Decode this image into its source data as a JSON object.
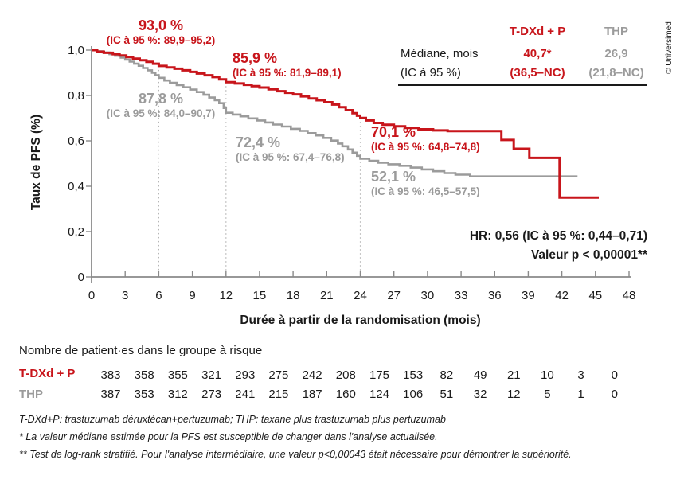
{
  "colors": {
    "tdxd_red": "#c8151b",
    "thp_gray": "#9b9b9b",
    "text": "#1a1a1a",
    "axis": "#8a8a8a",
    "dotted_line": "#b5b5b5"
  },
  "copyright": "© Universimed",
  "chart_data": {
    "type": "line",
    "subtype": "kaplan-meier-step",
    "xlabel": "Durée à partir de la randomisation (mois)",
    "ylabel": "Taux de PFS (%)",
    "xlim": [
      0,
      48
    ],
    "ylim": [
      0,
      1
    ],
    "grid": false,
    "x_ticks": [
      0,
      3,
      6,
      9,
      12,
      15,
      18,
      21,
      24,
      27,
      30,
      33,
      36,
      39,
      42,
      45,
      48
    ],
    "x_tick_labels": [
      "0",
      "3",
      "6",
      "9",
      "12",
      "15",
      "18",
      "21",
      "24",
      "27",
      "30",
      "33",
      "36",
      "39",
      "42",
      "45",
      "48"
    ],
    "y_ticks": [
      0,
      0.2,
      0.4,
      0.6,
      0.8,
      1
    ],
    "y_tick_labels": [
      "0",
      "0,2",
      "0,4",
      "0,6",
      "0,8",
      "1,0"
    ],
    "series": [
      {
        "name": "THP",
        "color_key": "thp_gray",
        "stroke_width": 2.6,
        "points": [
          [
            0,
            1
          ],
          [
            0.5,
            0.995
          ],
          [
            1,
            0.989
          ],
          [
            1.6,
            0.982
          ],
          [
            2.1,
            0.975
          ],
          [
            2.6,
            0.967
          ],
          [
            3,
            0.958
          ],
          [
            3.4,
            0.949
          ],
          [
            3.8,
            0.94
          ],
          [
            4.2,
            0.931
          ],
          [
            4.6,
            0.921
          ],
          [
            5,
            0.911
          ],
          [
            5.4,
            0.9
          ],
          [
            5.7,
            0.889
          ],
          [
            6,
            0.878
          ],
          [
            6.5,
            0.866
          ],
          [
            7,
            0.856
          ],
          [
            7.6,
            0.846
          ],
          [
            8.2,
            0.836
          ],
          [
            8.8,
            0.826
          ],
          [
            9.4,
            0.815
          ],
          [
            10,
            0.803
          ],
          [
            10.5,
            0.791
          ],
          [
            11,
            0.779
          ],
          [
            11.4,
            0.766
          ],
          [
            11.8,
            0.745
          ],
          [
            12,
            0.724
          ],
          [
            12.6,
            0.716
          ],
          [
            13.3,
            0.708
          ],
          [
            14,
            0.699
          ],
          [
            14.8,
            0.69
          ],
          [
            15.5,
            0.681
          ],
          [
            16.2,
            0.672
          ],
          [
            17,
            0.663
          ],
          [
            17.8,
            0.653
          ],
          [
            18.6,
            0.644
          ],
          [
            19.3,
            0.634
          ],
          [
            20,
            0.624
          ],
          [
            20.7,
            0.613
          ],
          [
            21.4,
            0.601
          ],
          [
            22,
            0.588
          ],
          [
            22.4,
            0.576
          ],
          [
            22.9,
            0.562
          ],
          [
            23.3,
            0.548
          ],
          [
            23.7,
            0.534
          ],
          [
            24,
            0.521
          ],
          [
            24.8,
            0.512
          ],
          [
            25.6,
            0.504
          ],
          [
            26.5,
            0.497
          ],
          [
            27.5,
            0.49
          ],
          [
            28.5,
            0.482
          ],
          [
            29.5,
            0.474
          ],
          [
            30.5,
            0.466
          ],
          [
            31.5,
            0.458
          ],
          [
            32.5,
            0.451
          ],
          [
            33.8,
            0.443
          ],
          [
            43.4,
            0.443
          ]
        ]
      },
      {
        "name": "T-DXd + P",
        "color_key": "tdxd_red",
        "stroke_width": 3,
        "points": [
          [
            0,
            1
          ],
          [
            0.5,
            0.993
          ],
          [
            1.1,
            0.988
          ],
          [
            1.9,
            0.982
          ],
          [
            2.5,
            0.976
          ],
          [
            3.1,
            0.969
          ],
          [
            3.7,
            0.962
          ],
          [
            4.3,
            0.955
          ],
          [
            4.9,
            0.948
          ],
          [
            5.5,
            0.94
          ],
          [
            6,
            0.93
          ],
          [
            6.7,
            0.924
          ],
          [
            7.4,
            0.918
          ],
          [
            8.1,
            0.911
          ],
          [
            8.8,
            0.904
          ],
          [
            9.4,
            0.897
          ],
          [
            10.1,
            0.889
          ],
          [
            10.8,
            0.881
          ],
          [
            11.4,
            0.871
          ],
          [
            12,
            0.859
          ],
          [
            12.8,
            0.853
          ],
          [
            13.6,
            0.847
          ],
          [
            14.3,
            0.841
          ],
          [
            15,
            0.835
          ],
          [
            15.8,
            0.827
          ],
          [
            16.6,
            0.819
          ],
          [
            17.3,
            0.812
          ],
          [
            18,
            0.805
          ],
          [
            18.7,
            0.796
          ],
          [
            19.4,
            0.787
          ],
          [
            20.1,
            0.779
          ],
          [
            20.8,
            0.77
          ],
          [
            21.5,
            0.76
          ],
          [
            22.1,
            0.748
          ],
          [
            22.7,
            0.735
          ],
          [
            23.3,
            0.722
          ],
          [
            23.7,
            0.711
          ],
          [
            24,
            0.701
          ],
          [
            24.5,
            0.69
          ],
          [
            25.2,
            0.679
          ],
          [
            26,
            0.671
          ],
          [
            27,
            0.664
          ],
          [
            28,
            0.657
          ],
          [
            29.2,
            0.651
          ],
          [
            30.5,
            0.646
          ],
          [
            31.8,
            0.643
          ],
          [
            36.6,
            0.604
          ],
          [
            37.7,
            0.565
          ],
          [
            39.1,
            0.525
          ],
          [
            41.8,
            0.35
          ],
          [
            45.3,
            0.35
          ]
        ]
      }
    ],
    "reference_lines": [
      {
        "x": 6,
        "y_top": 0.93
      },
      {
        "x": 12,
        "y_top": 0.859
      },
      {
        "x": 24,
        "y_top": 0.701
      }
    ],
    "landmark_annotations": [
      {
        "series": "T-DXd + P",
        "month": 6,
        "value": "93,0 %",
        "ci": "(IC à 95 %: 89,9–95,2)"
      },
      {
        "series": "T-DXd + P",
        "month": 12,
        "value": "85,9 %",
        "ci": "(IC à 95 %: 81,9–89,1)"
      },
      {
        "series": "THP",
        "month": 6,
        "value": "87,8 %",
        "ci": "(IC à 95 %: 84,0–90,7)"
      },
      {
        "series": "THP",
        "month": 12,
        "value": "72,4 %",
        "ci": "(IC à 95 %: 67,4–76,8)"
      },
      {
        "series": "T-DXd + P",
        "month": 24,
        "value": "70,1 %",
        "ci": "(IC à 95 %: 64,8–74,8)"
      },
      {
        "series": "THP",
        "month": 24,
        "value": "52,1 %",
        "ci": "(IC à 95 %: 46,5–57,5)"
      }
    ]
  },
  "median_table": {
    "row_label_line1": "Médiane, mois",
    "row_label_line2": "(IC à 95 %)",
    "columns": [
      {
        "name": "T-DXd + P",
        "median": "40,7*",
        "ci": "(36,5–NC)",
        "color_key": "tdxd_red"
      },
      {
        "name": "THP",
        "median": "26,9",
        "ci": "(21,8–NC)",
        "color_key": "thp_gray"
      }
    ]
  },
  "hr_annotation": {
    "line1": "HR: 0,56 (IC à 95 %: 0,44–0,71)",
    "line2": "Valeur p < 0,00001**"
  },
  "risk_table": {
    "title": "Nombre de patient·es dans le groupe à risque",
    "months": [
      0,
      3,
      6,
      9,
      12,
      15,
      18,
      21,
      24,
      27,
      30,
      33,
      36,
      39,
      42,
      45
    ],
    "rows": [
      {
        "label": "T-DXd + P",
        "color_key": "tdxd_red",
        "counts": [
          383,
          358,
          355,
          321,
          293,
          275,
          242,
          208,
          175,
          153,
          82,
          49,
          21,
          10,
          3,
          0
        ]
      },
      {
        "label": "THP",
        "color_key": "thp_gray",
        "counts": [
          387,
          353,
          312,
          273,
          241,
          215,
          187,
          160,
          124,
          106,
          51,
          32,
          12,
          5,
          1,
          0
        ]
      }
    ]
  },
  "footnotes": [
    "T-DXd+P: trastuzumab déruxtécan+pertuzumab; THP: taxane plus trastuzumab plus pertuzumab",
    "* La valeur médiane estimée pour la PFS est susceptible de changer dans l'analyse actualisée.",
    "** Test de log-rank stratifié. Pour l'analyse intermédiaire, une valeur p<0,00043 était nécessaire pour démontrer la supériorité."
  ]
}
